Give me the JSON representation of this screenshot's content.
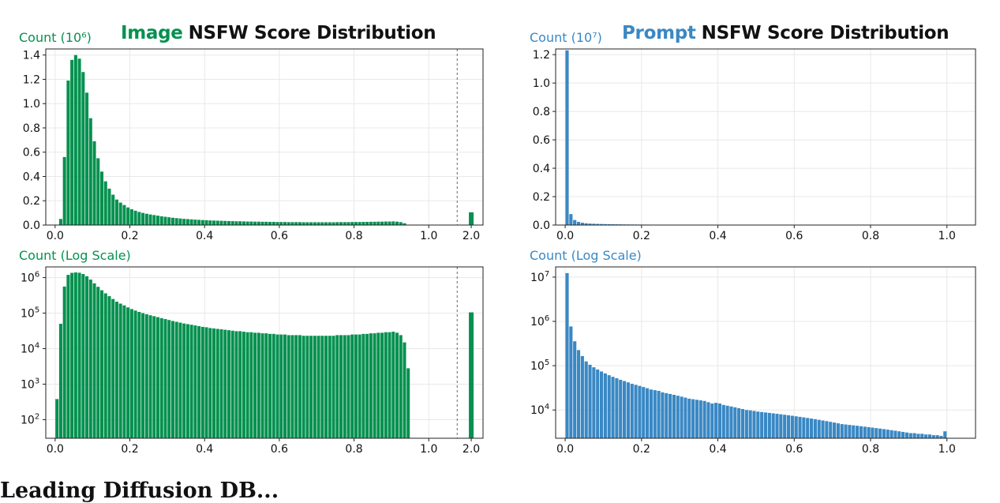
{
  "colors": {
    "green": "#05914f",
    "blue": "#3a88c4",
    "grid": "#e8e8e8",
    "axis": "#222222",
    "separator": "#666666"
  },
  "footer_text": "Leading Diffusion DB...",
  "chart_data": [
    {
      "id": "image_linear",
      "type": "bar",
      "title_highlight": "Image",
      "title_rest": "NSFW Score Distribution",
      "ylabel": "Count (10⁶)",
      "scale": "linear",
      "ylim": [
        0,
        1.45
      ],
      "yticks": [
        0,
        0.2,
        0.4,
        0.6,
        0.8,
        1.0,
        1.2,
        1.4
      ],
      "ytick_labels": [
        "0.0",
        "0.2",
        "0.4",
        "0.6",
        "0.8",
        "1.0",
        "1.2",
        "1.4"
      ],
      "xticks": [
        0,
        0.2,
        0.4,
        0.6,
        0.8,
        1.0
      ],
      "xtick_labels": [
        "0.0",
        "0.2",
        "0.4",
        "0.6",
        "0.8",
        "1.0"
      ],
      "extra_tick_label": "2.0",
      "bin_width": 0.01,
      "values": [
        0.0004,
        0.05,
        0.56,
        1.19,
        1.36,
        1.4,
        1.37,
        1.26,
        1.09,
        0.88,
        0.69,
        0.55,
        0.44,
        0.36,
        0.3,
        0.25,
        0.21,
        0.185,
        0.165,
        0.145,
        0.13,
        0.118,
        0.108,
        0.1,
        0.093,
        0.087,
        0.082,
        0.077,
        0.072,
        0.068,
        0.064,
        0.06,
        0.057,
        0.054,
        0.051,
        0.049,
        0.047,
        0.045,
        0.043,
        0.041,
        0.04,
        0.038,
        0.037,
        0.036,
        0.035,
        0.034,
        0.033,
        0.032,
        0.031,
        0.031,
        0.03,
        0.029,
        0.029,
        0.028,
        0.028,
        0.027,
        0.027,
        0.026,
        0.026,
        0.025,
        0.025,
        0.025,
        0.024,
        0.024,
        0.024,
        0.024,
        0.023,
        0.023,
        0.023,
        0.023,
        0.023,
        0.023,
        0.023,
        0.023,
        0.023,
        0.024,
        0.024,
        0.024,
        0.024,
        0.025,
        0.025,
        0.025,
        0.026,
        0.026,
        0.027,
        0.027,
        0.028,
        0.028,
        0.029,
        0.029,
        0.03,
        0.028,
        0.024,
        0.015,
        0.0028,
        3e-05,
        0,
        0,
        0,
        0
      ],
      "extra_value": 0.105
    },
    {
      "id": "image_log",
      "type": "bar",
      "ylabel": "Count (Log Scale)",
      "scale": "log",
      "ylim": [
        30,
        2000000
      ],
      "yticks": [
        100,
        1000,
        10000,
        100000,
        1000000
      ],
      "ytick_labels": [
        [
          "10",
          "2"
        ],
        [
          "10",
          "3"
        ],
        [
          "10",
          "4"
        ],
        [
          "10",
          "5"
        ],
        [
          "10",
          "6"
        ]
      ],
      "xticks": [
        0,
        0.2,
        0.4,
        0.6,
        0.8,
        1.0
      ],
      "xtick_labels": [
        "0.0",
        "0.2",
        "0.4",
        "0.6",
        "0.8",
        "1.0"
      ],
      "extra_tick_label": "2.0",
      "bin_width": 0.01,
      "values": [
        380,
        50000,
        560000,
        1190000,
        1360000,
        1400000,
        1370000,
        1260000,
        1090000,
        880000,
        690000,
        550000,
        440000,
        360000,
        300000,
        250000,
        210000,
        185000,
        165000,
        145000,
        130000,
        118000,
        108000,
        100000,
        93000,
        87000,
        82000,
        77000,
        72000,
        68000,
        64000,
        60000,
        57000,
        54000,
        51000,
        49000,
        47000,
        45000,
        43000,
        41000,
        40000,
        38000,
        37000,
        36000,
        35000,
        34000,
        33000,
        32000,
        31000,
        31000,
        30000,
        29000,
        29000,
        28000,
        28000,
        27000,
        27000,
        26000,
        26000,
        25000,
        25000,
        25000,
        24000,
        24000,
        24000,
        24000,
        23000,
        23000,
        23000,
        23000,
        23000,
        23000,
        23000,
        23000,
        23000,
        24000,
        24000,
        24000,
        24000,
        25000,
        25000,
        25000,
        26000,
        26000,
        27000,
        27000,
        28000,
        28000,
        29000,
        29000,
        30000,
        28000,
        24000,
        15000,
        2800,
        30,
        0,
        0,
        0,
        0
      ],
      "extra_value": 105000
    },
    {
      "id": "prompt_linear",
      "type": "bar",
      "title_highlight": "Prompt",
      "title_rest": "NSFW Score Distribution",
      "ylabel": "Count (10⁷)",
      "scale": "linear",
      "ylim": [
        0,
        1.24
      ],
      "yticks": [
        0,
        0.2,
        0.4,
        0.6,
        0.8,
        1.0,
        1.2
      ],
      "ytick_labels": [
        "0.0",
        "0.2",
        "0.4",
        "0.6",
        "0.8",
        "1.0",
        "1.2"
      ],
      "xticks": [
        0,
        0.2,
        0.4,
        0.6,
        0.8,
        1.0
      ],
      "xtick_labels": [
        "0.0",
        "0.2",
        "0.4",
        "0.6",
        "0.8",
        "1.0"
      ],
      "bin_width": 0.01,
      "values": [
        1.23,
        0.077,
        0.0355,
        0.0225,
        0.0165,
        0.0125,
        0.0105,
        0.0092,
        0.0082,
        0.0074,
        0.0067,
        0.0061,
        0.0056,
        0.0052,
        0.0048,
        0.0045,
        0.0042,
        0.0039,
        0.0037,
        0.0035,
        0.0033,
        0.0031,
        0.0029,
        0.0028,
        0.0027,
        0.0025,
        0.0024,
        0.0023,
        0.0022,
        0.0021,
        0.002,
        0.0019,
        0.0018,
        0.00175,
        0.0017,
        0.00165,
        0.0016,
        0.0015,
        0.0014,
        0.00145,
        0.0014,
        0.0013,
        0.00125,
        0.0012,
        0.00115,
        0.0011,
        0.00105,
        0.001,
        0.00098,
        0.00095,
        0.00092,
        0.0009,
        0.00088,
        0.00086,
        0.00084,
        0.00082,
        0.0008,
        0.00078,
        0.00076,
        0.00074,
        0.00072,
        0.0007,
        0.00068,
        0.00066,
        0.00064,
        0.00062,
        0.0006,
        0.00058,
        0.00056,
        0.00054,
        0.00052,
        0.0005,
        0.00048,
        0.00047,
        0.00046,
        0.00045,
        0.00044,
        0.00043,
        0.00042,
        0.00041,
        0.0004,
        0.00039,
        0.00038,
        0.00037,
        0.00036,
        0.00035,
        0.00034,
        0.00033,
        0.00032,
        0.00031,
        0.0003,
        0.0003,
        0.00029,
        0.00029,
        0.00028,
        0.00028,
        0.00027,
        0.00027,
        0.00026,
        0.00033
      ]
    },
    {
      "id": "prompt_log",
      "type": "bar",
      "ylabel": "Count (Log Scale)",
      "scale": "log",
      "ylim": [
        2300,
        17000000
      ],
      "yticks": [
        10000,
        100000,
        1000000,
        10000000
      ],
      "ytick_labels": [
        [
          "10",
          "4"
        ],
        [
          "10",
          "5"
        ],
        [
          "10",
          "6"
        ],
        [
          "10",
          "7"
        ]
      ],
      "xticks": [
        0,
        0.2,
        0.4,
        0.6,
        0.8,
        1.0
      ],
      "xtick_labels": [
        "0.0",
        "0.2",
        "0.4",
        "0.6",
        "0.8",
        "1.0"
      ],
      "bin_width": 0.01,
      "values": [
        12300000,
        770000,
        355000,
        225000,
        165000,
        125000,
        105000,
        92000,
        82000,
        74000,
        67000,
        61000,
        56000,
        52000,
        48000,
        45000,
        42000,
        39000,
        37000,
        35000,
        33000,
        31000,
        29000,
        28000,
        27000,
        25000,
        24000,
        23000,
        22000,
        21000,
        20000,
        19000,
        18000,
        17500,
        17000,
        16500,
        16000,
        15000,
        14000,
        14500,
        14000,
        13000,
        12500,
        12000,
        11500,
        11000,
        10500,
        10000,
        9800,
        9500,
        9200,
        9000,
        8800,
        8600,
        8400,
        8200,
        8000,
        7800,
        7600,
        7400,
        7200,
        7000,
        6800,
        6600,
        6400,
        6200,
        6000,
        5800,
        5600,
        5400,
        5200,
        5000,
        4800,
        4700,
        4600,
        4500,
        4400,
        4300,
        4200,
        4100,
        4000,
        3900,
        3800,
        3700,
        3600,
        3500,
        3400,
        3300,
        3200,
        3100,
        3000,
        3000,
        2900,
        2900,
        2800,
        2800,
        2700,
        2700,
        2600,
        3300
      ]
    }
  ]
}
